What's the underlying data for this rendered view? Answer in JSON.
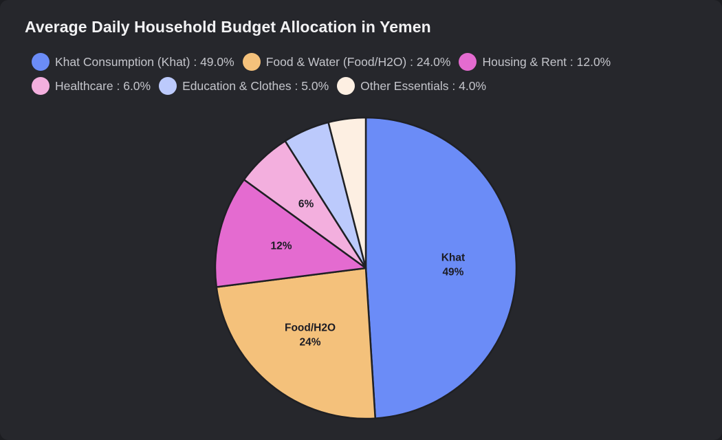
{
  "title": "Average Daily Household Budget Allocation in Yemen",
  "chart_data": {
    "type": "pie",
    "title": "Average Daily Household Budget Allocation in Yemen",
    "unit": "%",
    "legend_position": "top",
    "start_angle_deg": 0,
    "direction": "clockwise",
    "slices": [
      {
        "name": "Khat Consumption (Khat)",
        "legend_text": "Khat Consumption (Khat) : 49.0%",
        "short": "Khat",
        "value": 49.0,
        "label": "49%",
        "color": "#6b8cf7"
      },
      {
        "name": "Food & Water (Food/H2O)",
        "legend_text": "Food & Water (Food/H2O) : 24.0%",
        "short": "Food/H2O",
        "value": 24.0,
        "label": "24%",
        "color": "#f4c17b"
      },
      {
        "name": "Housing & Rent",
        "legend_text": "Housing & Rent : 12.0%",
        "short": "",
        "value": 12.0,
        "label": "12%",
        "color": "#e46bd0"
      },
      {
        "name": "Healthcare",
        "legend_text": "Healthcare : 6.0%",
        "short": "",
        "value": 6.0,
        "label": "6%",
        "color": "#f3afde"
      },
      {
        "name": "Education & Clothes",
        "legend_text": "Education & Clothes : 5.0%",
        "short": "",
        "value": 5.0,
        "label": "",
        "color": "#bccafc"
      },
      {
        "name": "Other Essentials",
        "legend_text": "Other Essentials : 4.0%",
        "short": "",
        "value": 4.0,
        "label": "",
        "color": "#fdefe2"
      }
    ]
  }
}
